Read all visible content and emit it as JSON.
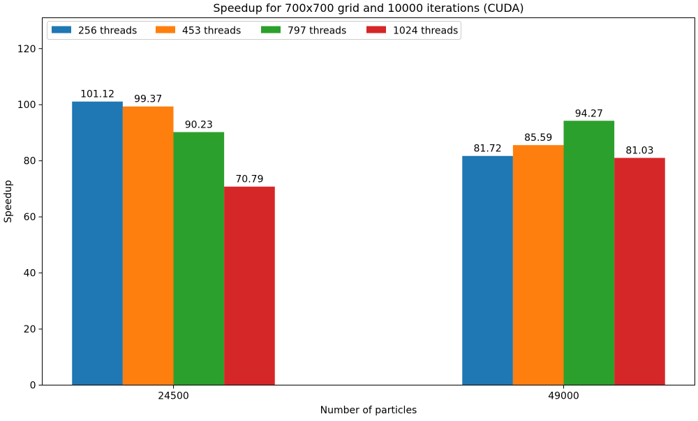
{
  "chart_data": {
    "type": "bar",
    "title": "Speedup for 700x700 grid and 10000 iterations (CUDA)",
    "xlabel": "Number of particles",
    "ylabel": "Speedup",
    "categories": [
      "24500",
      "49000"
    ],
    "series": [
      {
        "name": "256 threads",
        "values": [
          101.12,
          81.72
        ],
        "color": "#1f77b4"
      },
      {
        "name": "453 threads",
        "values": [
          99.37,
          85.59
        ],
        "color": "#ff7f0e"
      },
      {
        "name": "797 threads",
        "values": [
          90.23,
          94.27
        ],
        "color": "#2ca02c"
      },
      {
        "name": "1024 threads",
        "values": [
          70.79,
          81.03
        ],
        "color": "#d62728"
      }
    ],
    "ylim": [
      0,
      131
    ],
    "yticks": [
      0,
      20,
      40,
      60,
      80,
      100,
      120
    ],
    "grid": false,
    "legend": "top-left",
    "data_labels": true
  }
}
